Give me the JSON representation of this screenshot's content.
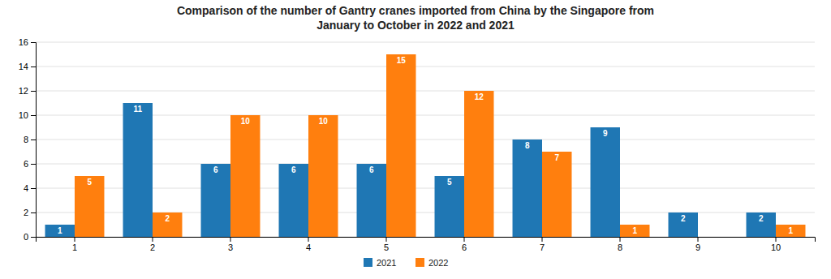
{
  "chart_data": {
    "type": "bar",
    "title": "Comparison of the number of Gantry cranes imported from China by the Singapore from\nJanuary to October in 2022 and 2021",
    "categories": [
      "1",
      "2",
      "3",
      "4",
      "5",
      "6",
      "7",
      "8",
      "9",
      "10"
    ],
    "series": [
      {
        "name": "2021",
        "values": [
          1,
          11,
          6,
          6,
          6,
          5,
          8,
          9,
          2,
          2
        ],
        "value_labels": [
          "1",
          "11",
          "6",
          "6",
          "6",
          "5",
          "8",
          "9",
          "2",
          "2"
        ]
      },
      {
        "name": "2022",
        "values": [
          5,
          2,
          10,
          10,
          15,
          12,
          7,
          1,
          0,
          1
        ],
        "value_labels": [
          "5",
          "2",
          "10",
          "10",
          "15",
          "12",
          "7",
          "1",
          null,
          "1"
        ]
      }
    ],
    "ylim": [
      0,
      16
    ],
    "yticks": [
      0,
      2,
      4,
      6,
      8,
      10,
      12,
      14,
      16
    ],
    "grid": true,
    "legend": "bottom",
    "data_labels": true
  }
}
